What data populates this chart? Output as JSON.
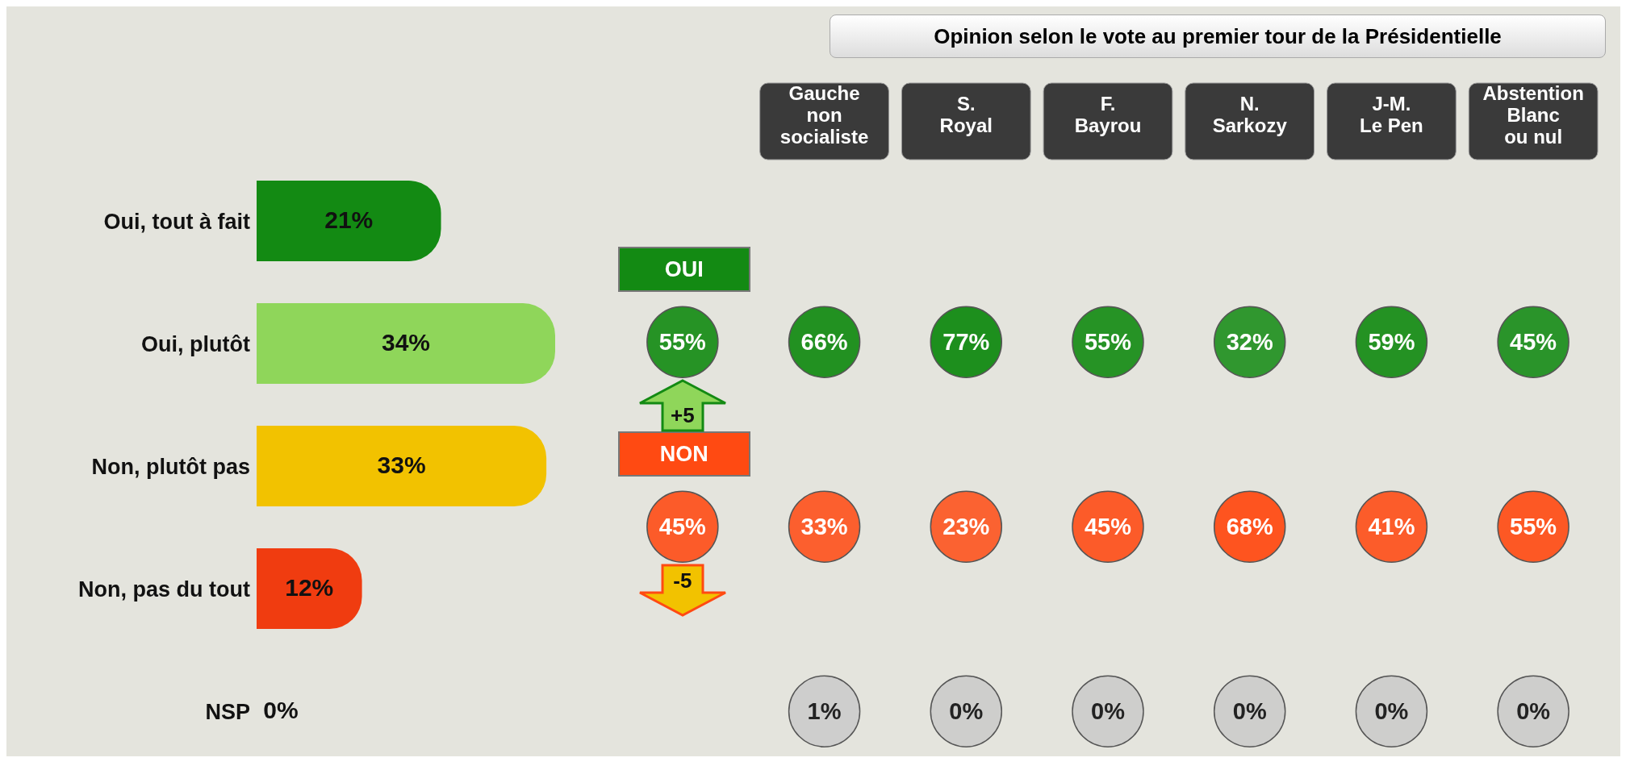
{
  "chart_data": [
    {
      "type": "bar",
      "orientation": "horizontal",
      "categories": [
        "Oui, tout à fait",
        "Oui, plutôt",
        "Non, plutôt pas",
        "Non, pas du tout",
        "NSP"
      ],
      "values": [
        21,
        34,
        33,
        12,
        0
      ],
      "colors": [
        "#138a13",
        "#8fd65a",
        "#f2c200",
        "#f03c10",
        "#8a8a8a"
      ],
      "value_labels": [
        "21%",
        "34%",
        "33%",
        "12%",
        "0%"
      ],
      "tick_labels": "y"
    },
    {
      "type": "heatmap",
      "title": "Opinion selon le vote au premier tour de la Présidentielle",
      "categories": [
        null,
        "Gauche non socialiste",
        "S. Royal",
        "F. Bayrou",
        "N. Sarkozy",
        "J-M. Le Pen",
        "Abstention Blanc ou nul"
      ],
      "y_categories": [
        "OUI",
        "NON",
        null
      ],
      "cells": [
        [
          55,
          66,
          77,
          55,
          32,
          59,
          45
        ],
        [
          45,
          33,
          23,
          45,
          68,
          41,
          55
        ],
        [
          null,
          1,
          0,
          0,
          0,
          0,
          0
        ]
      ],
      "cell_labels": [
        [
          "55%",
          "66%",
          "77%",
          "55%",
          "32%",
          "59%",
          "45%"
        ],
        [
          "45%",
          "33%",
          "23%",
          "45%",
          "68%",
          "41%",
          "55%"
        ],
        [
          null,
          "1%",
          "0%",
          "0%",
          "0%",
          "0%",
          "0%"
        ]
      ],
      "colors": [
        "#138a13",
        "#ff4a12",
        "#c8c8c8"
      ],
      "annotations": [
        "+5",
        "-5"
      ]
    }
  ]
}
